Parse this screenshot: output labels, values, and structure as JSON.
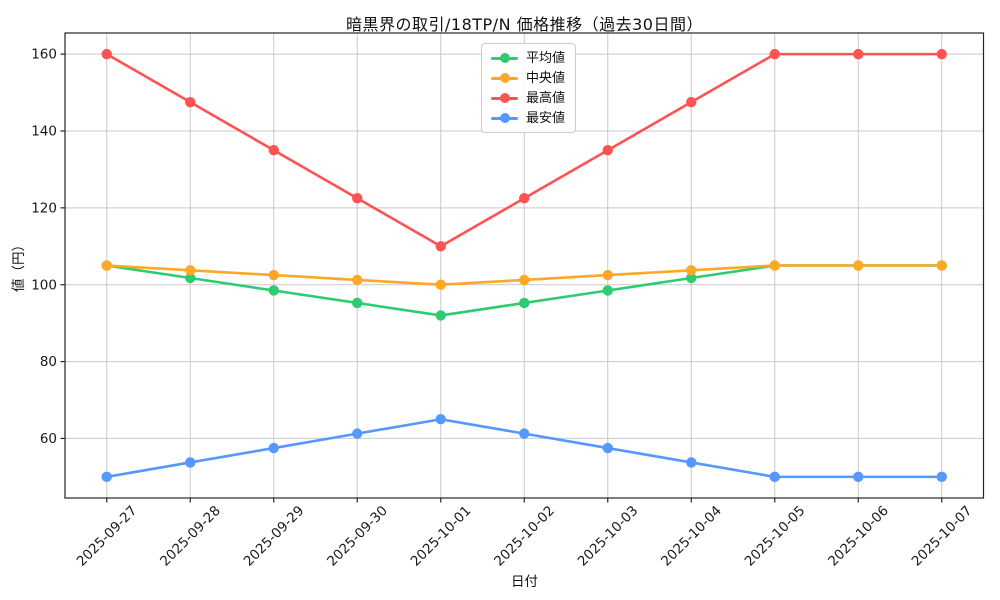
{
  "chart_data": {
    "type": "line",
    "title": "暗黒界の取引/18TP/N 価格推移（過去30日間）",
    "xlabel": "日付",
    "ylabel": "値（円）",
    "categories": [
      "2025-09-27",
      "2025-09-28",
      "2025-09-29",
      "2025-09-30",
      "2025-10-01",
      "2025-10-02",
      "2025-10-03",
      "2025-10-04",
      "2025-10-05",
      "2025-10-06",
      "2025-10-07"
    ],
    "series": [
      {
        "name": "平均値",
        "color": "#2ecc71",
        "values": [
          105,
          101.75,
          98.5,
          95.25,
          92,
          95.25,
          98.5,
          101.75,
          105,
          105,
          105
        ]
      },
      {
        "name": "中央値",
        "color": "#ffa726",
        "values": [
          105,
          103.75,
          102.5,
          101.25,
          100,
          101.25,
          102.5,
          103.75,
          105,
          105,
          105
        ]
      },
      {
        "name": "最高値",
        "color": "#ff5252",
        "values": [
          160,
          147.5,
          135,
          122.5,
          110,
          122.5,
          135,
          147.5,
          160,
          160,
          160
        ]
      },
      {
        "name": "最安値",
        "color": "#5598ff",
        "values": [
          50,
          53.75,
          57.5,
          61.25,
          65,
          61.25,
          57.5,
          53.75,
          50,
          50,
          50
        ]
      }
    ],
    "yticks": [
      60,
      80,
      100,
      120,
      140,
      160
    ],
    "ylim": [
      44.5,
      165.5
    ],
    "grid": true,
    "legend_position": "upper-center",
    "marker": "circle",
    "style": {
      "grid_color": "#c9c9c9",
      "spine_color": "#262626",
      "tick_label_color": "#1a1a1a",
      "background": "#ffffff"
    }
  }
}
